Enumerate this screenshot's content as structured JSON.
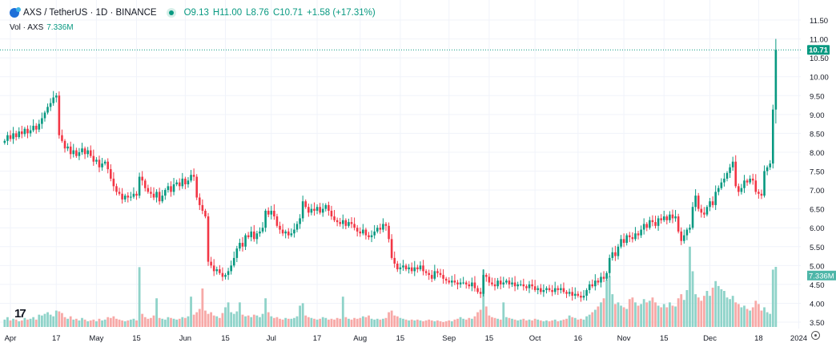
{
  "header": {
    "symbol": "AXS / TetherUS · 1D · BINANCE",
    "open": "O9.13",
    "high": "H11.00",
    "low": "L8.76",
    "close": "C10.71",
    "change": "+1.58 (+17.31%)",
    "vol_label": "Vol · AXS",
    "vol_value": "7.336M"
  },
  "colors": {
    "up": "#089981",
    "down": "#f23645",
    "vol_up": "#8fd3c9",
    "vol_down": "#f7a9a7",
    "grid": "#f0f3fa"
  },
  "chart_data": {
    "type": "candlestick",
    "first_date": "2023-03-30",
    "interval": "1D",
    "ylim": [
      3.35,
      11.65
    ],
    "y_ticks": [
      "11.50",
      "11.00",
      "10.50",
      "10.00",
      "9.50",
      "9.00",
      "8.50",
      "8.00",
      "7.50",
      "7.00",
      "6.50",
      "6.00",
      "5.50",
      "5.00",
      "4.50",
      "4.00",
      "3.50"
    ],
    "x_ticks": [
      {
        "label": "Apr",
        "date": "2023-04-01"
      },
      {
        "label": "17",
        "date": "2023-04-17"
      },
      {
        "label": "May",
        "date": "2023-05-01"
      },
      {
        "label": "15",
        "date": "2023-05-15"
      },
      {
        "label": "Jun",
        "date": "2023-06-01"
      },
      {
        "label": "15",
        "date": "2023-06-15"
      },
      {
        "label": "Jul",
        "date": "2023-07-01"
      },
      {
        "label": "17",
        "date": "2023-07-17"
      },
      {
        "label": "Aug",
        "date": "2023-08-01"
      },
      {
        "label": "15",
        "date": "2023-08-15"
      },
      {
        "label": "Sep",
        "date": "2023-09-01"
      },
      {
        "label": "15",
        "date": "2023-09-15"
      },
      {
        "label": "Oct",
        "date": "2023-10-01"
      },
      {
        "label": "16",
        "date": "2023-10-16"
      },
      {
        "label": "Nov",
        "date": "2023-11-01"
      },
      {
        "label": "15",
        "date": "2023-11-15"
      },
      {
        "label": "Dec",
        "date": "2023-12-01"
      },
      {
        "label": "18",
        "date": "2023-12-18"
      },
      {
        "label": "2024",
        "date": "2024-01-01"
      }
    ],
    "last": {
      "o": 9.13,
      "h": 11.0,
      "l": 8.76,
      "c": 10.71
    },
    "last_price_label": "10.71",
    "last_volume_label": "7.336M",
    "close": [
      8.3,
      8.45,
      8.35,
      8.5,
      8.4,
      8.55,
      8.48,
      8.62,
      8.5,
      8.58,
      8.7,
      8.6,
      8.75,
      8.9,
      9.05,
      9.2,
      9.3,
      9.45,
      9.5,
      8.45,
      8.3,
      8.1,
      8.15,
      7.95,
      8.05,
      7.9,
      8.0,
      8.1,
      7.95,
      8.05,
      7.9,
      7.75,
      7.8,
      7.6,
      7.7,
      7.75,
      7.55,
      7.3,
      7.1,
      6.95,
      6.9,
      6.75,
      6.85,
      6.8,
      6.82,
      6.9,
      6.85,
      7.35,
      7.25,
      7.05,
      6.95,
      6.9,
      6.8,
      6.95,
      6.7,
      6.85,
      7.0,
      7.1,
      6.95,
      7.15,
      7.2,
      7.1,
      7.3,
      7.15,
      7.25,
      7.4,
      7.35,
      6.8,
      6.6,
      6.45,
      6.3,
      5.1,
      5.0,
      4.85,
      4.9,
      4.8,
      4.7,
      4.75,
      4.85,
      5.0,
      5.2,
      5.45,
      5.6,
      5.5,
      5.8,
      5.75,
      5.9,
      5.7,
      5.85,
      5.9,
      6.0,
      6.45,
      6.35,
      6.45,
      6.3,
      6.05,
      5.95,
      5.85,
      5.9,
      5.8,
      5.85,
      5.95,
      6.1,
      6.25,
      6.7,
      6.55,
      6.4,
      6.5,
      6.45,
      6.55,
      6.4,
      6.5,
      6.6,
      6.45,
      6.3,
      6.2,
      6.15,
      6.1,
      6.2,
      6.05,
      6.15,
      6.1,
      6.0,
      5.9,
      5.85,
      5.95,
      5.8,
      5.75,
      5.8,
      5.9,
      6.0,
      5.95,
      6.1,
      6.05,
      5.7,
      5.2,
      5.05,
      4.9,
      4.95,
      5.0,
      4.9,
      4.95,
      4.85,
      4.95,
      4.9,
      5.0,
      4.85,
      4.8,
      4.75,
      4.65,
      4.85,
      4.8,
      4.75,
      4.65,
      4.6,
      4.55,
      4.6,
      4.55,
      4.5,
      4.55,
      4.55,
      4.5,
      4.45,
      4.55,
      4.4,
      4.3,
      4.25,
      4.75,
      4.7,
      4.55,
      4.5,
      4.45,
      4.6,
      4.5,
      4.55,
      4.6,
      4.5,
      4.55,
      4.45,
      4.5,
      4.5,
      4.45,
      4.4,
      4.5,
      4.45,
      4.35,
      4.4,
      4.3,
      4.35,
      4.4,
      4.35,
      4.3,
      4.4,
      4.35,
      4.4,
      4.3,
      4.25,
      4.3,
      4.2,
      4.25,
      4.2,
      4.15,
      4.2,
      4.35,
      4.5,
      4.45,
      4.6,
      4.55,
      4.7,
      4.65,
      4.8,
      5.2,
      5.35,
      5.25,
      5.5,
      5.7,
      5.6,
      5.8,
      5.75,
      5.7,
      5.85,
      5.8,
      5.95,
      6.1,
      6.0,
      6.2,
      6.15,
      6.05,
      6.25,
      6.2,
      6.3,
      6.2,
      6.35,
      6.25,
      6.3,
      5.9,
      5.65,
      5.8,
      5.95,
      6.0,
      6.55,
      6.85,
      6.5,
      6.4,
      6.35,
      6.55,
      6.7,
      6.6,
      6.95,
      7.05,
      7.2,
      7.3,
      7.45,
      7.6,
      7.75,
      7.1,
      6.95,
      7.05,
      7.25,
      7.2,
      7.3,
      7.25,
      6.95,
      6.9,
      6.85,
      7.5,
      7.6,
      7.7,
      9.13,
      10.71
    ],
    "volume_millions": [
      0.9,
      1.2,
      0.8,
      1.0,
      0.9,
      0.7,
      0.8,
      1.1,
      0.9,
      1.0,
      1.2,
      0.9,
      1.5,
      1.4,
      1.6,
      1.8,
      1.5,
      1.3,
      2.0,
      1.9,
      1.7,
      1.2,
      1.0,
      1.3,
      0.9,
      1.0,
      0.8,
      1.1,
      0.9,
      0.7,
      0.8,
      0.9,
      0.7,
      1.0,
      0.8,
      0.9,
      1.2,
      1.1,
      1.3,
      1.0,
      0.9,
      0.8,
      0.7,
      0.8,
      0.9,
      1.0,
      0.8,
      7.3,
      1.6,
      1.2,
      1.0,
      1.1,
      1.4,
      3.5,
      1.1,
      1.0,
      0.9,
      1.2,
      1.1,
      1.0,
      0.9,
      1.0,
      1.2,
      1.1,
      1.3,
      3.7,
      1.5,
      1.8,
      2.2,
      4.7,
      2.0,
      1.6,
      1.8,
      1.4,
      1.3,
      1.1,
      1.7,
      2.4,
      3.0,
      1.8,
      1.6,
      1.9,
      3.0,
      1.5,
      1.3,
      1.4,
      1.2,
      1.5,
      1.4,
      1.2,
      1.6,
      3.5,
      1.8,
      1.3,
      1.1,
      1.2,
      1.0,
      0.9,
      1.1,
      1.0,
      1.0,
      1.1,
      1.3,
      2.6,
      2.9,
      1.4,
      1.2,
      1.1,
      1.0,
      0.9,
      1.0,
      1.2,
      1.1,
      0.9,
      1.0,
      0.9,
      1.1,
      1.0,
      3.7,
      1.2,
      1.0,
      0.9,
      1.1,
      1.0,
      1.1,
      1.3,
      1.2,
      1.4,
      1.0,
      0.9,
      1.0,
      0.9,
      1.0,
      1.1,
      1.8,
      2.0,
      1.4,
      1.3,
      1.1,
      1.0,
      0.9,
      0.8,
      0.9,
      0.8,
      0.9,
      0.8,
      0.7,
      0.8,
      0.9,
      0.8,
      0.7,
      0.8,
      0.7,
      0.6,
      0.7,
      0.8,
      0.7,
      0.9,
      1.0,
      1.2,
      1.0,
      0.9,
      1.1,
      1.0,
      1.3,
      1.8,
      2.1,
      7.0,
      2.5,
      1.4,
      1.2,
      1.1,
      1.0,
      0.9,
      3.0,
      1.2,
      1.1,
      1.0,
      0.9,
      0.8,
      0.9,
      1.0,
      0.8,
      0.9,
      0.8,
      1.0,
      0.9,
      0.8,
      0.7,
      0.8,
      0.7,
      0.8,
      0.9,
      0.7,
      0.8,
      0.9,
      1.0,
      1.4,
      1.2,
      1.1,
      0.9,
      1.0,
      0.9,
      1.3,
      1.5,
      1.8,
      2.1,
      2.5,
      3.0,
      3.5,
      5.8,
      6.2,
      4.0,
      2.8,
      3.0,
      2.6,
      2.4,
      2.2,
      3.4,
      3.6,
      3.0,
      2.6,
      2.8,
      3.4,
      3.0,
      3.2,
      3.6,
      3.0,
      2.6,
      2.4,
      2.8,
      2.4,
      3.0,
      2.6,
      2.5,
      3.5,
      4.0,
      3.3,
      4.5,
      9.8,
      6.8,
      4.0,
      3.6,
      3.2,
      3.8,
      4.4,
      3.8,
      4.8,
      5.6,
      5.0,
      4.6,
      4.4,
      3.6,
      3.4,
      3.8,
      3.0,
      2.8,
      2.4,
      2.6,
      2.2,
      2.0,
      2.4,
      3.2,
      2.8,
      2.0,
      2.4,
      1.8,
      1.6,
      7.0,
      7.336
    ]
  }
}
